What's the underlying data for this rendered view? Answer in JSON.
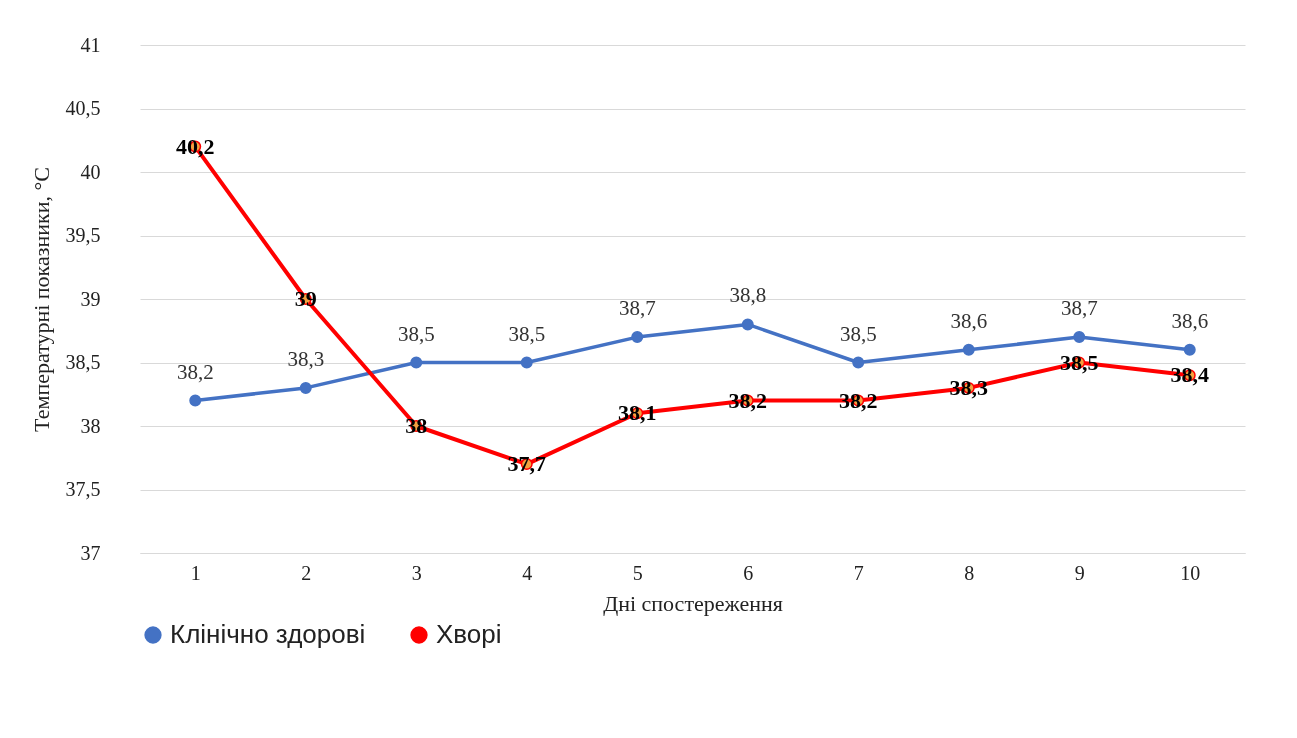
{
  "chart_data": {
    "type": "line",
    "xlabel": "Дні спостереження",
    "ylabel": "Температурні показники, °C",
    "categories": [
      "1",
      "2",
      "3",
      "4",
      "5",
      "6",
      "7",
      "8",
      "9",
      "10"
    ],
    "ylim": [
      37,
      41
    ],
    "yticks": [
      37,
      {
        "value": 37.5,
        "label": "37,5"
      },
      38,
      {
        "value": 38.5,
        "label": "38,5"
      },
      39,
      {
        "value": 39.5,
        "label": "39,5"
      },
      40,
      {
        "value": 40.5,
        "label": "40,5"
      },
      41
    ],
    "grid": "y",
    "legend": "bottom",
    "marker": "circle",
    "line_style": "solid",
    "series": [
      {
        "name": "Клінічно здорові",
        "color": "#4472c4",
        "values": [
          38.2,
          38.3,
          38.5,
          38.5,
          38.7,
          38.8,
          38.5,
          38.6,
          38.7,
          38.6
        ],
        "value_labels": [
          "38,2",
          "38,3",
          "38,5",
          "38,5",
          "38,7",
          "38,8",
          "38,5",
          "38,6",
          "38,7",
          "38,6"
        ]
      },
      {
        "name": "Хворі",
        "color": "#ff0000",
        "values": [
          40.2,
          39,
          38,
          37.7,
          38.1,
          38.2,
          38.2,
          38.3,
          38.5,
          38.4
        ],
        "value_labels": [
          "40,2",
          "39",
          "38",
          "37,7",
          "38,1",
          "38,2",
          "38,2",
          "38,3",
          "38,5",
          "38,4"
        ]
      }
    ]
  }
}
